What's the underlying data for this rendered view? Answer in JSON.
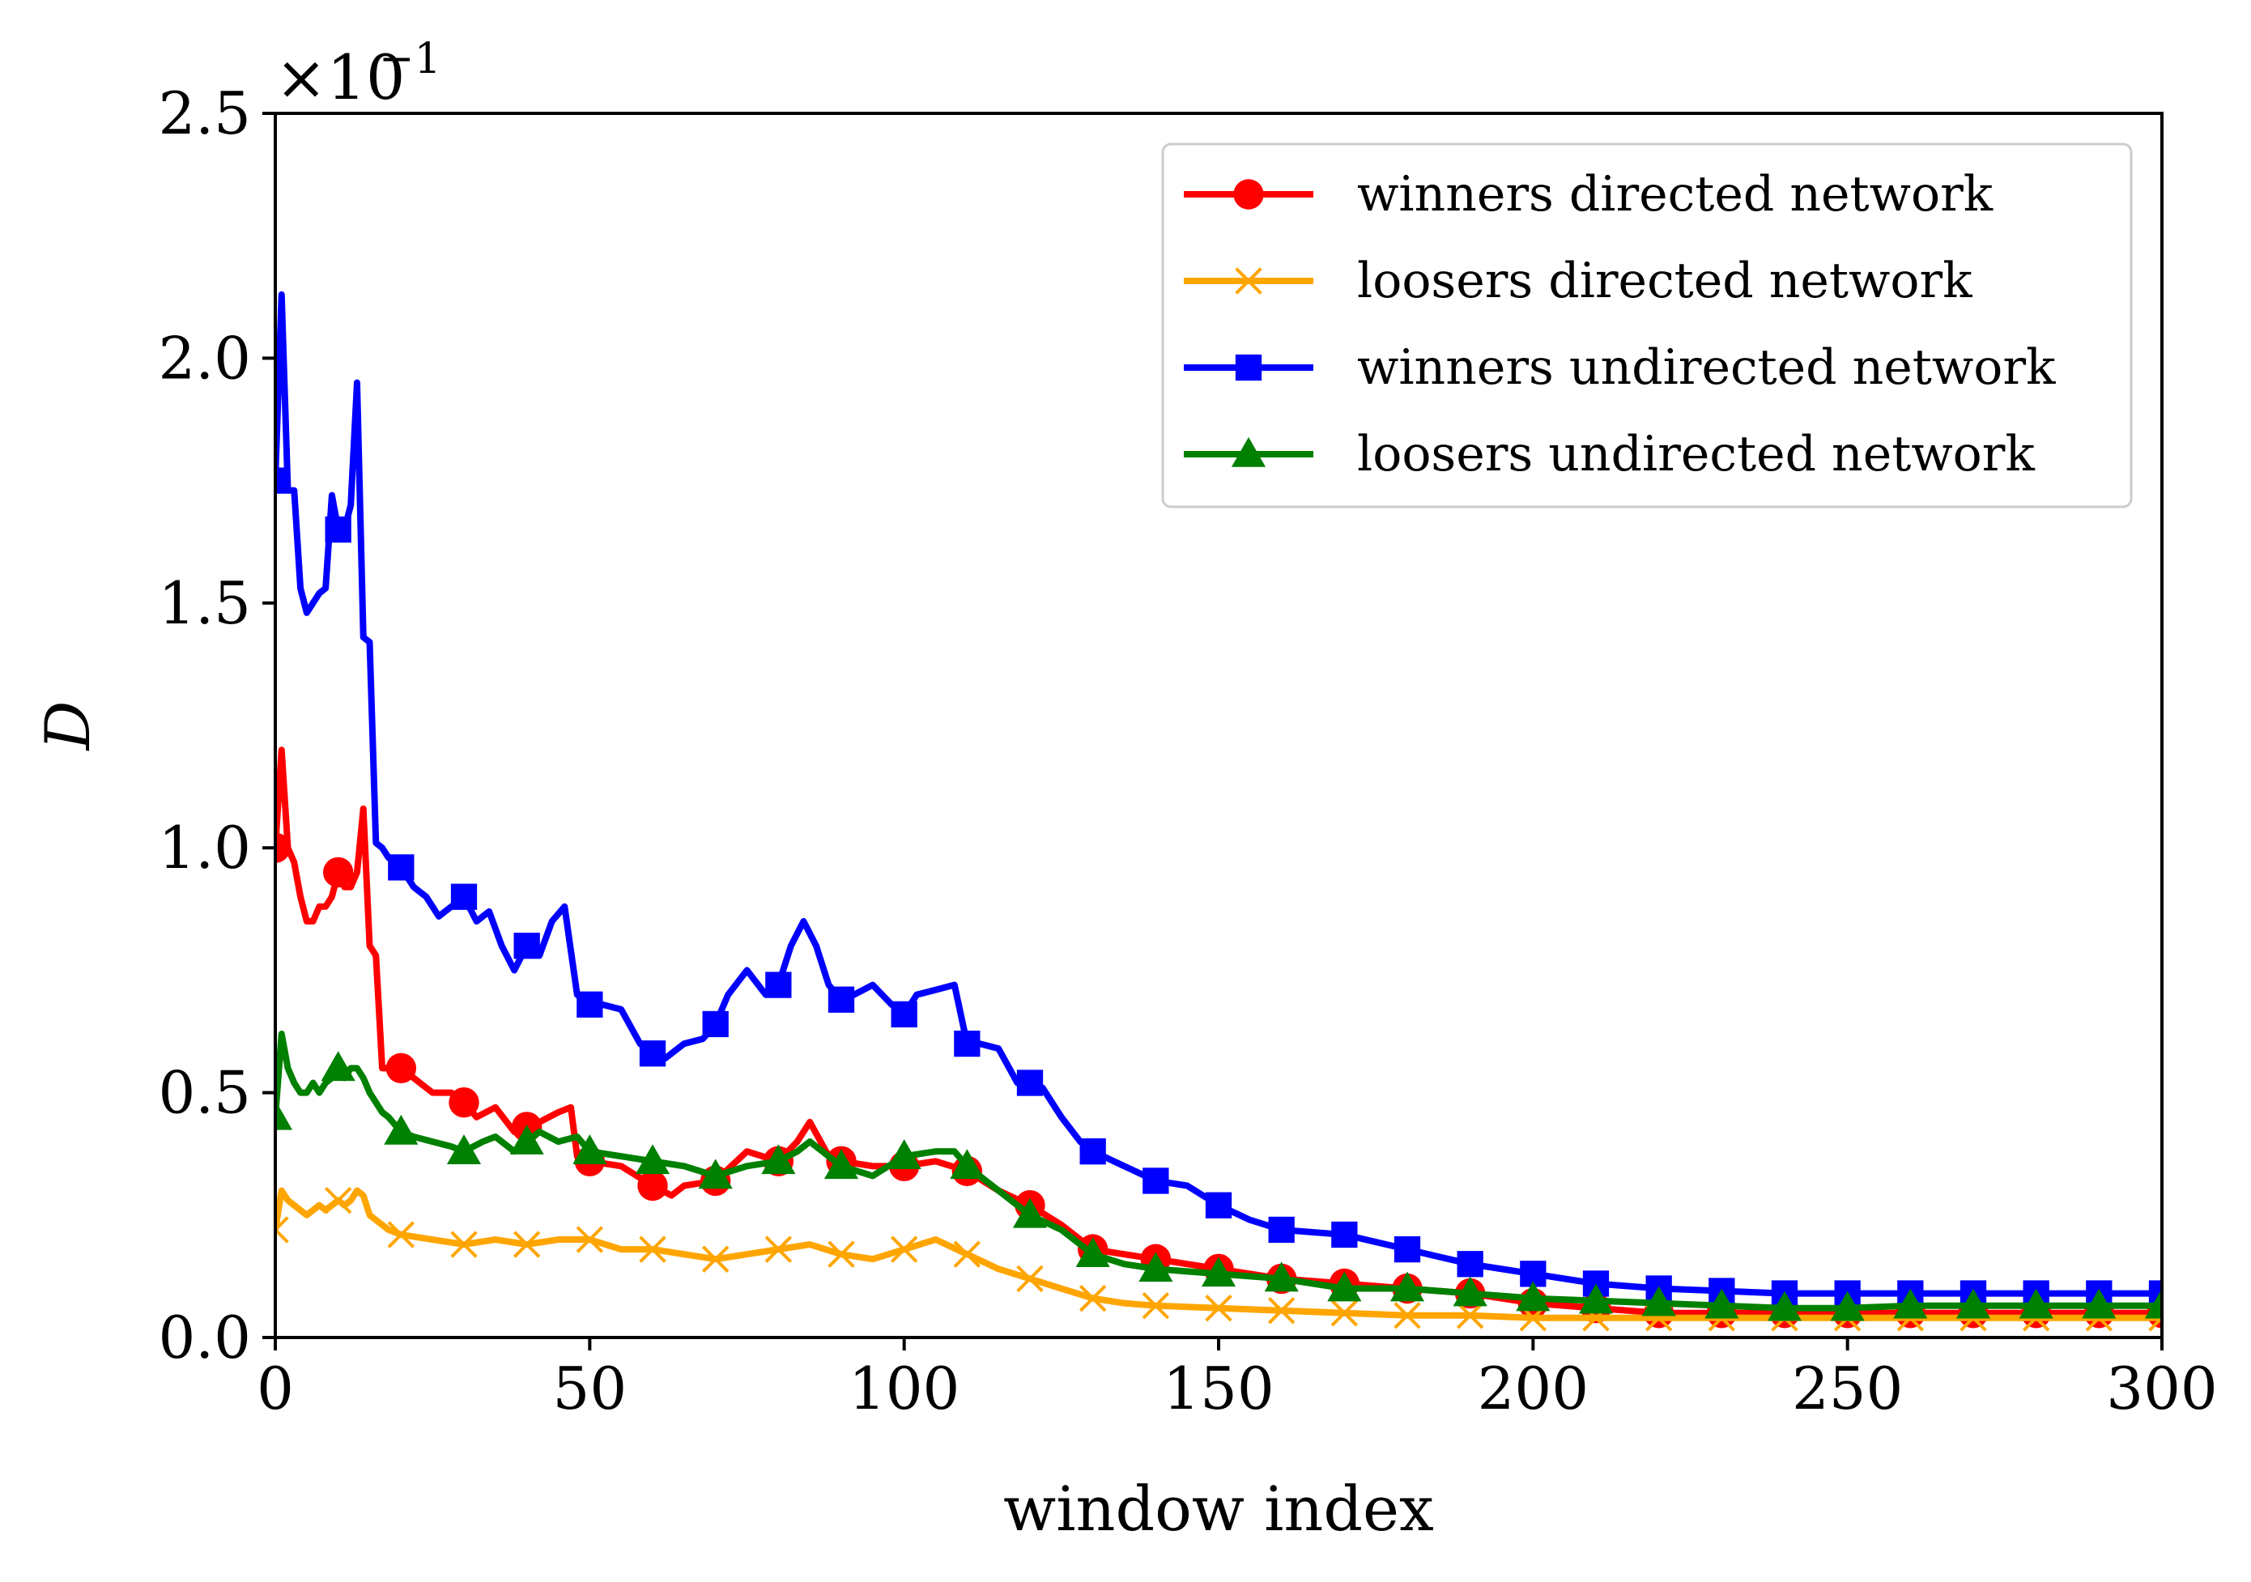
{
  "chart_data": {
    "type": "line",
    "xlabel": "window index",
    "ylabel": "D",
    "y_scale_note": "×10",
    "y_scale_exp": "−1",
    "xlim": [
      0,
      300
    ],
    "ylim": [
      0,
      2.5
    ],
    "xticks": [
      0,
      50,
      100,
      150,
      200,
      250,
      300
    ],
    "yticks": [
      "0.0",
      "0.5",
      "1.0",
      "1.5",
      "2.0",
      "2.5"
    ],
    "grid": false,
    "legend_position": "top-right",
    "series": [
      {
        "name": "winners directed network",
        "color": "#ff0000",
        "marker": "circle",
        "markevery": 7,
        "x": [
          0,
          1,
          2,
          3,
          4,
          5,
          6,
          7,
          8,
          9,
          10,
          11,
          12,
          13,
          14,
          15,
          16,
          17,
          18,
          20,
          22,
          25,
          28,
          30,
          32,
          35,
          38,
          40,
          42,
          45,
          47,
          48,
          50,
          55,
          60,
          63,
          65,
          70,
          75,
          80,
          83,
          85,
          88,
          90,
          95,
          100,
          105,
          110,
          115,
          120,
          125,
          130,
          135,
          140,
          150,
          160,
          170,
          180,
          190,
          200,
          210,
          220,
          230,
          240,
          250,
          260,
          270,
          280,
          290,
          300
        ],
        "y": [
          1.0,
          1.2,
          1.0,
          0.97,
          0.9,
          0.85,
          0.85,
          0.88,
          0.88,
          0.9,
          0.95,
          0.92,
          0.92,
          0.95,
          1.08,
          0.8,
          0.78,
          0.55,
          0.55,
          0.55,
          0.53,
          0.5,
          0.5,
          0.48,
          0.45,
          0.47,
          0.42,
          0.43,
          0.44,
          0.46,
          0.47,
          0.37,
          0.36,
          0.35,
          0.31,
          0.29,
          0.31,
          0.32,
          0.38,
          0.36,
          0.4,
          0.44,
          0.37,
          0.36,
          0.35,
          0.35,
          0.36,
          0.34,
          0.3,
          0.27,
          0.23,
          0.18,
          0.17,
          0.16,
          0.14,
          0.12,
          0.11,
          0.1,
          0.09,
          0.07,
          0.06,
          0.05,
          0.05,
          0.05,
          0.05,
          0.05,
          0.05,
          0.05,
          0.05,
          0.05
        ]
      },
      {
        "name": "loosers directed network",
        "color": "#ffa500",
        "marker": "x",
        "markevery": 7,
        "x": [
          0,
          1,
          2,
          3,
          4,
          5,
          6,
          7,
          8,
          9,
          10,
          11,
          12,
          13,
          14,
          15,
          16,
          17,
          18,
          20,
          25,
          30,
          35,
          40,
          45,
          50,
          55,
          60,
          65,
          70,
          75,
          80,
          85,
          90,
          95,
          100,
          105,
          110,
          115,
          120,
          125,
          130,
          135,
          140,
          150,
          160,
          170,
          180,
          190,
          200,
          210,
          220,
          230,
          240,
          250,
          260,
          270,
          280,
          290,
          300
        ],
        "y": [
          0.22,
          0.3,
          0.28,
          0.27,
          0.26,
          0.25,
          0.26,
          0.27,
          0.26,
          0.27,
          0.28,
          0.27,
          0.28,
          0.3,
          0.29,
          0.25,
          0.24,
          0.23,
          0.22,
          0.21,
          0.2,
          0.19,
          0.2,
          0.19,
          0.2,
          0.2,
          0.18,
          0.18,
          0.17,
          0.16,
          0.17,
          0.18,
          0.19,
          0.17,
          0.16,
          0.18,
          0.2,
          0.17,
          0.14,
          0.12,
          0.1,
          0.08,
          0.07,
          0.065,
          0.06,
          0.055,
          0.05,
          0.045,
          0.045,
          0.04,
          0.04,
          0.04,
          0.04,
          0.04,
          0.04,
          0.04,
          0.04,
          0.04,
          0.04,
          0.04
        ]
      },
      {
        "name": "winners undirected network",
        "color": "#0000ff",
        "marker": "square",
        "markevery": 7,
        "x": [
          0,
          1,
          2,
          3,
          4,
          5,
          6,
          7,
          8,
          9,
          10,
          11,
          12,
          13,
          14,
          15,
          16,
          17,
          18,
          20,
          22,
          24,
          26,
          28,
          30,
          32,
          34,
          36,
          38,
          40,
          42,
          44,
          46,
          48,
          50,
          52,
          55,
          58,
          60,
          62,
          65,
          68,
          70,
          72,
          75,
          78,
          80,
          82,
          84,
          86,
          88,
          90,
          92,
          95,
          98,
          100,
          102,
          105,
          108,
          110,
          112,
          115,
          118,
          120,
          122,
          125,
          128,
          130,
          135,
          140,
          145,
          150,
          155,
          160,
          170,
          180,
          190,
          200,
          210,
          220,
          230,
          240,
          250,
          260,
          270,
          280,
          290,
          300
        ],
        "y": [
          1.75,
          2.13,
          1.73,
          1.73,
          1.53,
          1.48,
          1.5,
          1.52,
          1.53,
          1.72,
          1.65,
          1.65,
          1.7,
          1.95,
          1.43,
          1.42,
          1.01,
          1.0,
          0.98,
          0.96,
          0.92,
          0.9,
          0.86,
          0.88,
          0.9,
          0.85,
          0.87,
          0.8,
          0.75,
          0.8,
          0.78,
          0.85,
          0.88,
          0.7,
          0.68,
          0.68,
          0.67,
          0.6,
          0.58,
          0.57,
          0.6,
          0.61,
          0.64,
          0.7,
          0.75,
          0.7,
          0.72,
          0.8,
          0.85,
          0.8,
          0.72,
          0.69,
          0.7,
          0.72,
          0.68,
          0.66,
          0.7,
          0.71,
          0.72,
          0.6,
          0.6,
          0.59,
          0.52,
          0.52,
          0.51,
          0.45,
          0.4,
          0.38,
          0.35,
          0.32,
          0.31,
          0.27,
          0.24,
          0.22,
          0.21,
          0.18,
          0.15,
          0.13,
          0.11,
          0.1,
          0.095,
          0.09,
          0.09,
          0.09,
          0.09,
          0.09,
          0.09,
          0.09
        ]
      },
      {
        "name": "loosers undirected network",
        "color": "#008000",
        "marker": "triangle",
        "markevery": 7,
        "x": [
          0,
          1,
          2,
          3,
          4,
          5,
          6,
          7,
          8,
          9,
          10,
          11,
          12,
          13,
          14,
          15,
          16,
          17,
          18,
          20,
          22,
          25,
          28,
          30,
          33,
          35,
          38,
          40,
          42,
          45,
          48,
          50,
          55,
          60,
          65,
          70,
          75,
          80,
          83,
          85,
          90,
          95,
          100,
          105,
          108,
          110,
          115,
          120,
          125,
          130,
          135,
          140,
          150,
          160,
          170,
          180,
          190,
          200,
          210,
          220,
          230,
          240,
          250,
          260,
          270,
          280,
          290,
          300
        ],
        "y": [
          0.45,
          0.62,
          0.55,
          0.52,
          0.5,
          0.5,
          0.52,
          0.5,
          0.52,
          0.53,
          0.55,
          0.53,
          0.55,
          0.55,
          0.53,
          0.5,
          0.48,
          0.46,
          0.45,
          0.42,
          0.41,
          0.4,
          0.39,
          0.38,
          0.4,
          0.41,
          0.38,
          0.4,
          0.42,
          0.4,
          0.41,
          0.38,
          0.37,
          0.36,
          0.35,
          0.33,
          0.35,
          0.36,
          0.38,
          0.4,
          0.35,
          0.33,
          0.37,
          0.38,
          0.38,
          0.35,
          0.3,
          0.25,
          0.22,
          0.17,
          0.15,
          0.14,
          0.13,
          0.12,
          0.1,
          0.1,
          0.09,
          0.08,
          0.075,
          0.07,
          0.065,
          0.06,
          0.06,
          0.065,
          0.065,
          0.065,
          0.065,
          0.065
        ]
      }
    ]
  }
}
